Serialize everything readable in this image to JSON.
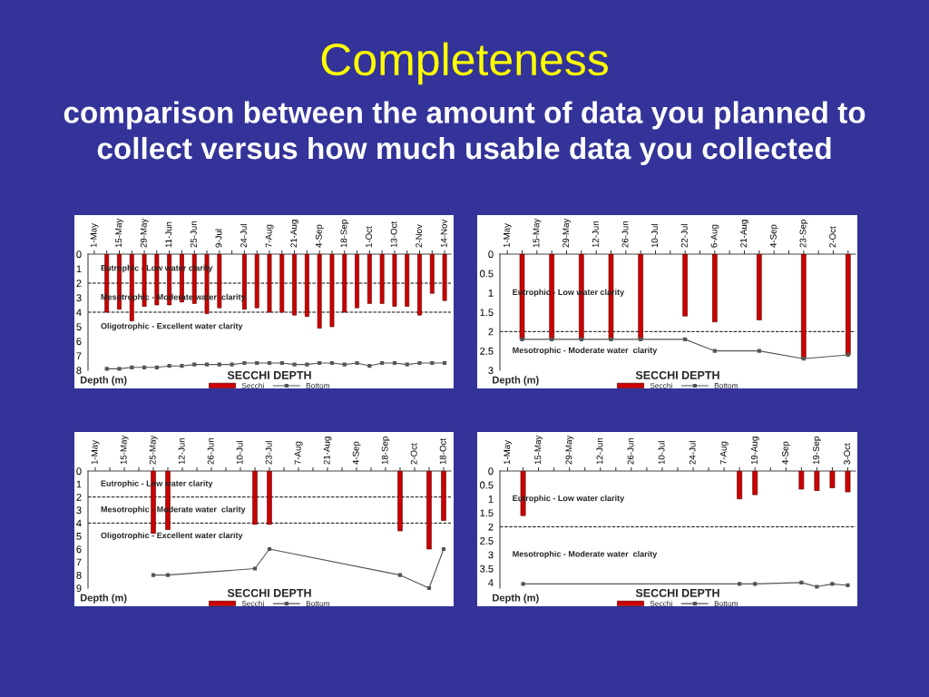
{
  "chart_data": [
    {
      "type": "bar",
      "title": "Completeness",
      "subtitle": "comparison between the amount of data you planned to collect versus how much usable data you collected",
      "xlabel": "SECCHI DEPTH",
      "legend": "bottom",
      "categories": [
        "1-May",
        null,
        "15-May",
        null,
        "29-May",
        null,
        "11-Jun",
        null,
        "25-Jun",
        null,
        "9-Jul",
        null,
        "24-Jul",
        null,
        "7-Aug",
        null,
        "21-Aug",
        null,
        "4-Sep",
        null,
        "18-Sep",
        null,
        "1-Oct",
        null,
        "13-Oct",
        null,
        "2-Nov",
        null,
        "14-Nov"
      ],
      "series": [
        {
          "name": "Secchi",
          "color": "#cc0000",
          "values": [
            null,
            4.0,
            3.8,
            4.6,
            3.6,
            3.5,
            3.5,
            3.3,
            3.4,
            4.1,
            3.7,
            null,
            3.8,
            3.7,
            4.0,
            4.0,
            4.2,
            4.3,
            5.1,
            5.0,
            4.0,
            3.7,
            3.4,
            3.4,
            3.6,
            3.6,
            4.2,
            2.7,
            3.2
          ]
        },
        {
          "name": "Bottom",
          "type": "line",
          "color": "#555555",
          "marker": "square",
          "values": [
            null,
            7.9,
            7.9,
            7.8,
            7.8,
            7.8,
            7.7,
            7.7,
            7.6,
            7.6,
            7.6,
            7.6,
            7.5,
            7.5,
            7.5,
            7.5,
            7.6,
            7.6,
            7.5,
            7.5,
            7.6,
            7.5,
            7.7,
            7.5,
            7.5,
            7.6,
            7.5,
            7.5,
            7.5
          ]
        }
      ],
      "ylim": [
        8,
        0
      ],
      "yticks": [
        0,
        1,
        2,
        3,
        4,
        5,
        6,
        7,
        8
      ],
      "ref_lines": [
        {
          "axis": "y",
          "value": 2,
          "color": "#000000",
          "line_style": "dashed"
        },
        {
          "axis": "y",
          "value": 4,
          "color": "#000000",
          "line_style": "dashed"
        }
      ],
      "annotations": [
        "Depth (m)",
        "Eutrophic - Low water clarity",
        "Mesotrophic - Moderate water  clarity",
        "Oligotrophic - Excellent water clarity"
      ]
    },
    {
      "type": "bar",
      "xlabel": "SECCHI DEPTH",
      "legend": "bottom",
      "categories": [
        "1-May",
        null,
        "15-May",
        null,
        "29-May",
        null,
        "12-Jun",
        null,
        "26-Jun",
        null,
        "10-Jul",
        null,
        "22-Jul",
        null,
        "6-Aug",
        null,
        "21-Aug",
        null,
        "4-Sep",
        null,
        "23-Sep",
        null,
        "2-Oct",
        null
      ],
      "series": [
        {
          "name": "Secchi",
          "color": "#cc0000",
          "values": [
            null,
            2.2,
            null,
            2.2,
            null,
            2.2,
            null,
            2.2,
            null,
            2.2,
            null,
            null,
            1.6,
            null,
            1.75,
            null,
            null,
            1.7,
            null,
            null,
            2.7,
            null,
            null,
            2.6
          ]
        },
        {
          "name": "Bottom",
          "type": "line",
          "color": "#555555",
          "marker": "square",
          "values": [
            null,
            2.2,
            null,
            2.2,
            null,
            2.2,
            null,
            2.2,
            null,
            2.2,
            null,
            null,
            2.2,
            null,
            2.5,
            null,
            null,
            2.5,
            null,
            null,
            2.7,
            null,
            null,
            2.6
          ]
        }
      ],
      "ylim": [
        3,
        0
      ],
      "yticks": [
        0,
        0.5,
        1,
        1.5,
        2,
        2.5,
        3
      ],
      "ref_lines": [
        {
          "axis": "y",
          "value": 2,
          "color": "#000000",
          "line_style": "dashed"
        }
      ],
      "annotations": [
        "Depth (m)",
        "Eutrophic - Low water clarity",
        "Mesotrophic - Moderate water  clarity"
      ]
    },
    {
      "type": "bar",
      "xlabel": "SECCHI DEPTH",
      "legend": "bottom",
      "categories": [
        "1-May",
        null,
        "15-May",
        null,
        "25-May",
        null,
        "12-Jun",
        null,
        "26-Jun",
        null,
        "10-Jul",
        null,
        "23-Jul",
        null,
        "7-Aug",
        null,
        "21-Aug",
        null,
        "4-Sep",
        null,
        "18-Sep",
        null,
        "2-Oct",
        null,
        "18-Oct"
      ],
      "series": [
        {
          "name": "Secchi",
          "color": "#cc0000",
          "values": [
            null,
            null,
            null,
            null,
            4.8,
            4.5,
            null,
            null,
            null,
            null,
            null,
            4.1,
            4.1,
            null,
            null,
            null,
            null,
            null,
            null,
            null,
            null,
            4.6,
            null,
            6.0,
            3.8
          ]
        },
        {
          "name": "Bottom",
          "type": "line",
          "color": "#555555",
          "marker": "square",
          "values": [
            null,
            null,
            null,
            null,
            8.0,
            8.0,
            null,
            null,
            null,
            null,
            null,
            7.5,
            6.0,
            null,
            null,
            null,
            null,
            null,
            null,
            null,
            null,
            8.0,
            null,
            9.0,
            6.0
          ]
        }
      ],
      "ylim": [
        9,
        0
      ],
      "yticks": [
        0,
        1,
        2,
        3,
        4,
        5,
        6,
        7,
        8,
        9
      ],
      "ref_lines": [
        {
          "axis": "y",
          "value": 2,
          "color": "#000000",
          "line_style": "dashed"
        },
        {
          "axis": "y",
          "value": 4,
          "color": "#000000",
          "line_style": "dashed"
        }
      ],
      "annotations": [
        "Depth (m)",
        "Eutrophic - Low water clarity",
        "Mesotrophic - Moderate water  clarity",
        "Oligotrophic - Excellent water clarity"
      ]
    },
    {
      "type": "bar",
      "xlabel": "SECCHI DEPTH",
      "legend": "bottom",
      "categories": [
        "1-May",
        null,
        "15-May",
        null,
        "29-May",
        null,
        "12-Jun",
        null,
        "26-Jun",
        null,
        "10-Jul",
        null,
        "24-Jul",
        null,
        "7-Aug",
        null,
        "19-Aug",
        null,
        "4-Sep",
        null,
        "19-Sep",
        null,
        "3-Oct"
      ],
      "series": [
        {
          "name": "Secchi",
          "color": "#cc0000",
          "values": [
            null,
            1.6,
            null,
            null,
            null,
            null,
            null,
            null,
            null,
            null,
            null,
            null,
            null,
            null,
            null,
            1.0,
            0.85,
            null,
            null,
            0.65,
            0.7,
            0.6,
            0.75
          ]
        },
        {
          "name": "Bottom",
          "type": "line",
          "color": "#555555",
          "marker": "square",
          "values": [
            null,
            4.05,
            null,
            null,
            null,
            null,
            null,
            null,
            null,
            null,
            null,
            null,
            null,
            null,
            null,
            4.05,
            4.05,
            null,
            null,
            4.0,
            4.15,
            4.05,
            4.1
          ]
        }
      ],
      "ylim": [
        4.2,
        0
      ],
      "yticks": [
        0,
        0.5,
        1,
        1.5,
        2,
        2.5,
        3,
        3.5,
        4
      ],
      "ref_lines": [
        {
          "axis": "y",
          "value": 2,
          "color": "#000000",
          "line_style": "dashed"
        }
      ],
      "annotations": [
        "Depth (m)",
        "Eutrophic - Low water clarity",
        "Mesotrophic - Moderate water  clarity"
      ]
    }
  ]
}
